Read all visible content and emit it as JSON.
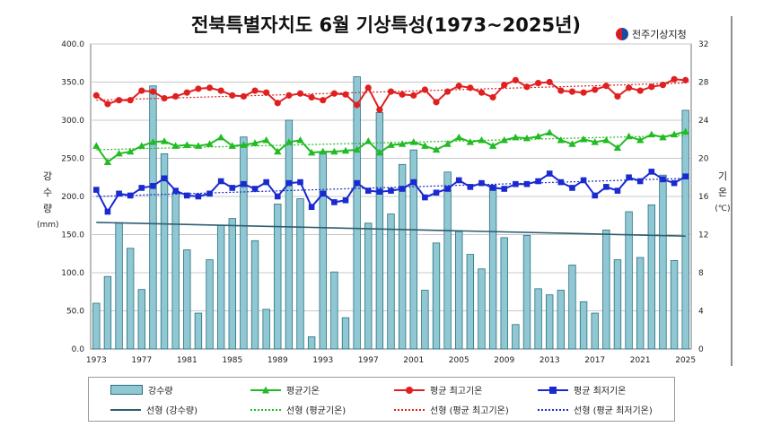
{
  "page": {
    "title": "전북특별자치도 6월 기상특성(1973~2025년)",
    "agency": "전주기상지청"
  },
  "axes": {
    "left_label": [
      "강",
      "수",
      "량"
    ],
    "left_unit": "(mm)",
    "right_label": [
      "기",
      "온"
    ],
    "right_unit": "(℃)",
    "left_ticks": [
      "0.0",
      "50.0",
      "100.0",
      "150.0",
      "200.0",
      "250.0",
      "300.0",
      "350.0",
      "400.0"
    ],
    "right_ticks": [
      "0",
      "4",
      "8",
      "12",
      "16",
      "20",
      "24",
      "28",
      "32"
    ],
    "x_ticks": [
      "1973",
      "1977",
      "1981",
      "1985",
      "1989",
      "1993",
      "1997",
      "2001",
      "2005",
      "2009",
      "2013",
      "2017",
      "2021",
      "2025"
    ]
  },
  "legend": {
    "precip": "강수량",
    "mean": "평균기온",
    "max": "평균 최고기온",
    "min": "평균 최저기온",
    "trend_precip": "선형 (강수량)",
    "trend_mean": "선형 (평균기온)",
    "trend_max": "선형 (평균 최고기온)",
    "trend_min": "선형 (평균 최저기온)"
  },
  "colors": {
    "bar_fill": "#8fc8d3",
    "bar_edge": "#2a6f80",
    "mean": "#22bb22",
    "max": "#e02020",
    "min": "#1a2ad0",
    "trend_precip": "#2e5e70"
  },
  "chart_data": {
    "type": "bar+line",
    "title": "전북특별자치도 6월 기상특성(1973~2025년)",
    "ylabel": "강수량 (mm)",
    "y2label": "기온 (℃)",
    "ylim": [
      0,
      400
    ],
    "y2lim": [
      0,
      32
    ],
    "grid": true,
    "legend_position": "bottom",
    "x": [
      1973,
      1974,
      1975,
      1976,
      1977,
      1978,
      1979,
      1980,
      1981,
      1982,
      1983,
      1984,
      1985,
      1986,
      1987,
      1988,
      1989,
      1990,
      1991,
      1992,
      1993,
      1994,
      1995,
      1996,
      1997,
      1998,
      1999,
      2000,
      2001,
      2002,
      2003,
      2004,
      2005,
      2006,
      2007,
      2008,
      2009,
      2010,
      2011,
      2012,
      2013,
      2014,
      2015,
      2016,
      2017,
      2018,
      2019,
      2020,
      2021,
      2022,
      2023,
      2024,
      2025
    ],
    "series": [
      {
        "name": "강수량",
        "type": "bar",
        "axis": "left",
        "values": [
          60,
          95,
          165,
          132,
          78,
          345,
          256,
          205,
          130,
          47,
          117,
          162,
          171,
          278,
          142,
          52,
          190,
          300,
          197,
          16,
          257,
          101,
          41,
          357,
          165,
          310,
          177,
          242,
          261,
          77,
          139,
          232,
          154,
          124,
          105,
          215,
          146,
          32,
          149,
          79,
          71,
          77,
          110,
          62,
          47,
          156,
          117,
          180,
          120,
          189,
          228,
          116,
          313
        ]
      },
      {
        "name": "평균기온",
        "type": "line",
        "axis": "right",
        "values": [
          21.3,
          19.6,
          20.5,
          20.7,
          21.3,
          21.7,
          21.8,
          21.3,
          21.4,
          21.3,
          21.5,
          22.2,
          21.3,
          21.4,
          21.6,
          21.9,
          20.7,
          21.7,
          21.9,
          20.6,
          20.7,
          20.7,
          20.8,
          20.9,
          21.8,
          20.6,
          21.4,
          21.5,
          21.7,
          21.3,
          20.9,
          21.5,
          22.2,
          21.7,
          21.9,
          21.3,
          21.9,
          22.2,
          22.1,
          22.3,
          22.7,
          21.9,
          21.5,
          22.0,
          21.7,
          21.9,
          21.1,
          22.3,
          21.9,
          22.5,
          22.2,
          22.5,
          22.8
        ]
      },
      {
        "name": "평균 최고기온",
        "type": "line",
        "axis": "right",
        "values": [
          26.6,
          25.7,
          26.1,
          26.1,
          27.1,
          27.0,
          26.3,
          26.5,
          26.9,
          27.3,
          27.4,
          27.1,
          26.6,
          26.5,
          27.1,
          26.9,
          25.8,
          26.6,
          26.8,
          26.4,
          26.1,
          26.8,
          26.7,
          25.6,
          27.4,
          25.1,
          27.0,
          26.7,
          26.6,
          27.2,
          25.9,
          27.0,
          27.6,
          27.4,
          26.9,
          26.4,
          27.7,
          28.2,
          27.5,
          27.9,
          28.0,
          27.1,
          27.0,
          26.9,
          27.2,
          27.6,
          26.5,
          27.4,
          27.1,
          27.5,
          27.7,
          28.3,
          28.2
        ]
      },
      {
        "name": "평균 최저기온",
        "type": "line",
        "axis": "right",
        "values": [
          16.7,
          14.4,
          16.3,
          16.1,
          16.9,
          17.1,
          17.9,
          16.6,
          16.1,
          16.0,
          16.3,
          17.6,
          16.9,
          17.3,
          16.8,
          17.5,
          16.0,
          17.4,
          17.5,
          14.9,
          16.3,
          15.4,
          15.6,
          17.4,
          16.6,
          16.5,
          16.6,
          16.8,
          17.5,
          15.9,
          16.4,
          16.8,
          17.7,
          17.0,
          17.4,
          16.9,
          16.8,
          17.3,
          17.3,
          17.6,
          18.4,
          17.5,
          16.9,
          17.7,
          16.1,
          17.0,
          16.6,
          18.0,
          17.6,
          18.6,
          17.8,
          17.4,
          18.1
        ]
      }
    ],
    "trends": [
      {
        "name": "선형 (강수량)",
        "axis": "left",
        "start": 166,
        "end": 148
      },
      {
        "name": "선형 (평균기온)",
        "axis": "right",
        "start": 20.9,
        "end": 22.4
      },
      {
        "name": "선형 (평균 최고기온)",
        "axis": "right",
        "start": 26.1,
        "end": 27.9
      },
      {
        "name": "선형 (평균 최저기온)",
        "axis": "right",
        "start": 16.0,
        "end": 17.9
      }
    ]
  }
}
